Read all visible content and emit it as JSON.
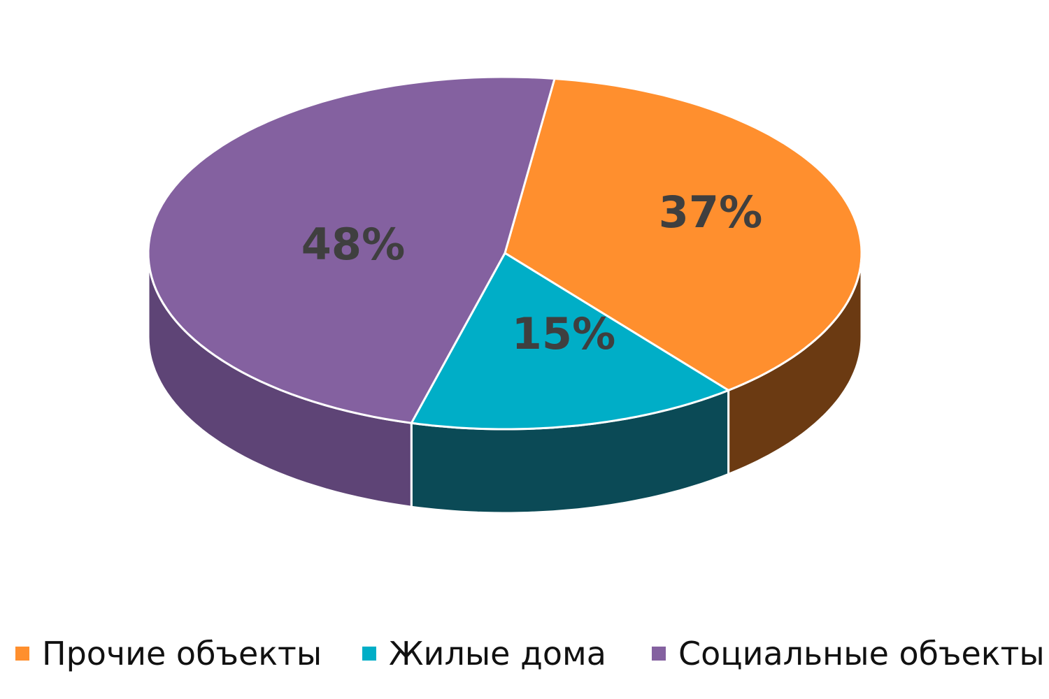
{
  "chart_data": {
    "type": "pie",
    "style": "3d",
    "categories": [
      "Прочие объекты",
      "Жилые дома",
      "Социальные объекты"
    ],
    "values": [
      37,
      15,
      48
    ],
    "labels": [
      "37%",
      "15%",
      "48%"
    ],
    "colors": [
      "#FF8F2E",
      "#00AEC7",
      "#8461A0"
    ],
    "side_colors": [
      "#6B3A12",
      "#0B4A56",
      "#5E4476"
    ],
    "title": "",
    "legend_position": "bottom"
  }
}
